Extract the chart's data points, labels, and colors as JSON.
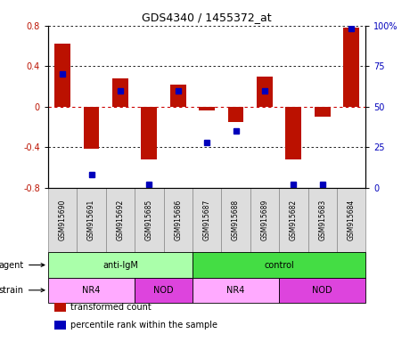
{
  "title": "GDS4340 / 1455372_at",
  "samples": [
    "GSM915690",
    "GSM915691",
    "GSM915692",
    "GSM915685",
    "GSM915686",
    "GSM915687",
    "GSM915688",
    "GSM915689",
    "GSM915682",
    "GSM915683",
    "GSM915684"
  ],
  "bar_values": [
    0.62,
    -0.42,
    0.28,
    -0.52,
    0.22,
    -0.04,
    -0.15,
    0.3,
    -0.52,
    -0.1,
    0.78
  ],
  "percentile_values": [
    70,
    8,
    60,
    2,
    60,
    28,
    35,
    60,
    2,
    2,
    98
  ],
  "ylim": [
    -0.8,
    0.8
  ],
  "y2lim": [
    0,
    100
  ],
  "yticks_left": [
    -0.8,
    -0.4,
    0.0,
    0.4,
    0.8
  ],
  "ytick_labels_left": [
    "-0.8",
    "-0.4",
    "0",
    "0.4",
    "0.8"
  ],
  "yticks_right": [
    0,
    25,
    50,
    75,
    100
  ],
  "ytick_labels_right": [
    "0",
    "25",
    "50",
    "75",
    "100%"
  ],
  "bar_color": "#bb1100",
  "dot_color": "#0000bb",
  "zero_line_color": "#cc0000",
  "grid_color": "#000000",
  "agent_labels": [
    {
      "label": "anti-IgM",
      "start": 0,
      "end": 5,
      "color": "#aaffaa"
    },
    {
      "label": "control",
      "start": 5,
      "end": 11,
      "color": "#44dd44"
    }
  ],
  "strain_labels": [
    {
      "label": "NR4",
      "start": 0,
      "end": 3,
      "color": "#ffaaff"
    },
    {
      "label": "NOD",
      "start": 3,
      "end": 5,
      "color": "#dd44dd"
    },
    {
      "label": "NR4",
      "start": 5,
      "end": 8,
      "color": "#ffaaff"
    },
    {
      "label": "NOD",
      "start": 8,
      "end": 11,
      "color": "#dd44dd"
    }
  ],
  "sample_box_color": "#dddddd",
  "sample_box_edge": "#888888",
  "legend_items": [
    {
      "color": "#bb1100",
      "label": "transformed count"
    },
    {
      "color": "#0000bb",
      "label": "percentile rank within the sample"
    }
  ],
  "row_label_agent": "agent",
  "row_label_strain": "strain"
}
